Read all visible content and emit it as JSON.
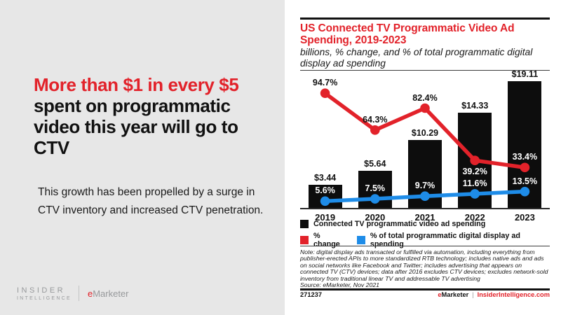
{
  "left_panel": {
    "headline_highlight": "More than $1 in every $5",
    "headline_rest": "spent on programmatic video this year will go to CTV",
    "description": "This growth has been propelled by a surge in\nCTV inventory and increased CTV penetration.",
    "logo": {
      "line1": "INSIDER",
      "line2": "INTELLIGENCE",
      "emarketer_e": "e",
      "emarketer_rest": "Marketer"
    }
  },
  "chart_panel": {
    "title": "US Connected TV Programmatic Video Ad\nSpending, 2019-2023",
    "subtitle": "billions, % change, and % of total programmatic digital\ndisplay ad spending",
    "legend": [
      {
        "label": "Connected TV programmatic video ad spending",
        "color": "#0d0d0d"
      },
      {
        "label": "% change",
        "color": "#e2222a"
      },
      {
        "label": "% of total programmatic digital display ad spending",
        "color": "#1e8ce8"
      }
    ],
    "note": "Note: digital display ads transacted or fulfilled via automation, including everything from publisher-erected APIs to more standardized RTB technology; includes native ads and ads on social networks like Facebook and Twitter; includes advertising that appears on connected TV (CTV) devices; data after 2016 excludes CTV devices; excludes network-sold inventory from traditional linear TV and addressable TV advertising",
    "source": "Source: eMarketer, Nov 2021",
    "footer": {
      "chart_id": "271237",
      "emarketer_e": "e",
      "emarketer_rest": "Marketer",
      "separator": "|",
      "site": "InsiderIntelligence.com"
    }
  },
  "chart_data": {
    "type": "bar",
    "title": "US Connected TV Programmatic Video Ad Spending, 2019-2023",
    "subtitle": "billions, % change, and % of total programmatic digital display ad spending",
    "categories": [
      "2019",
      "2020",
      "2021",
      "2022",
      "2023"
    ],
    "series": [
      {
        "name": "Connected TV programmatic video ad spending",
        "type": "bar",
        "unit": "billions USD",
        "color": "#0d0d0d",
        "values": [
          3.44,
          5.64,
          10.29,
          14.33,
          19.11
        ],
        "labels": [
          "$3.44",
          "$5.64",
          "$10.29",
          "$14.33",
          "$19.11"
        ]
      },
      {
        "name": "% change",
        "type": "line",
        "unit": "%",
        "color": "#e2222a",
        "values": [
          94.7,
          64.3,
          82.4,
          39.2,
          33.4
        ],
        "labels": [
          "94.7%",
          "64.3%",
          "82.4%",
          "39.2%",
          "33.4%"
        ],
        "label_placement": [
          "above",
          "above",
          "above",
          "below",
          "above"
        ],
        "label_colors": [
          "#111111",
          "#111111",
          "#111111",
          "#ffffff",
          "#ffffff"
        ]
      },
      {
        "name": "% of total programmatic digital display ad spending",
        "type": "line",
        "unit": "%",
        "color": "#1e8ce8",
        "values": [
          5.6,
          7.5,
          9.7,
          11.6,
          13.5
        ],
        "labels": [
          "5.6%",
          "7.5%",
          "9.7%",
          "11.6%",
          "13.5%"
        ],
        "label_placement": [
          "above",
          "above",
          "above",
          "above",
          "above"
        ],
        "label_colors": [
          "#ffffff",
          "#ffffff",
          "#ffffff",
          "#ffffff",
          "#ffffff"
        ]
      }
    ],
    "ylim_dollars": [
      0,
      20.4
    ],
    "ylim_pct": [
      0,
      111.6
    ],
    "grid": false,
    "legend_position": "bottom"
  },
  "colors": {
    "accent_red": "#e2222a",
    "accent_blue": "#1e8ce8",
    "bar_black": "#0d0d0d",
    "background_gray": "#e7e7e7",
    "panel_white": "#ffffff"
  }
}
